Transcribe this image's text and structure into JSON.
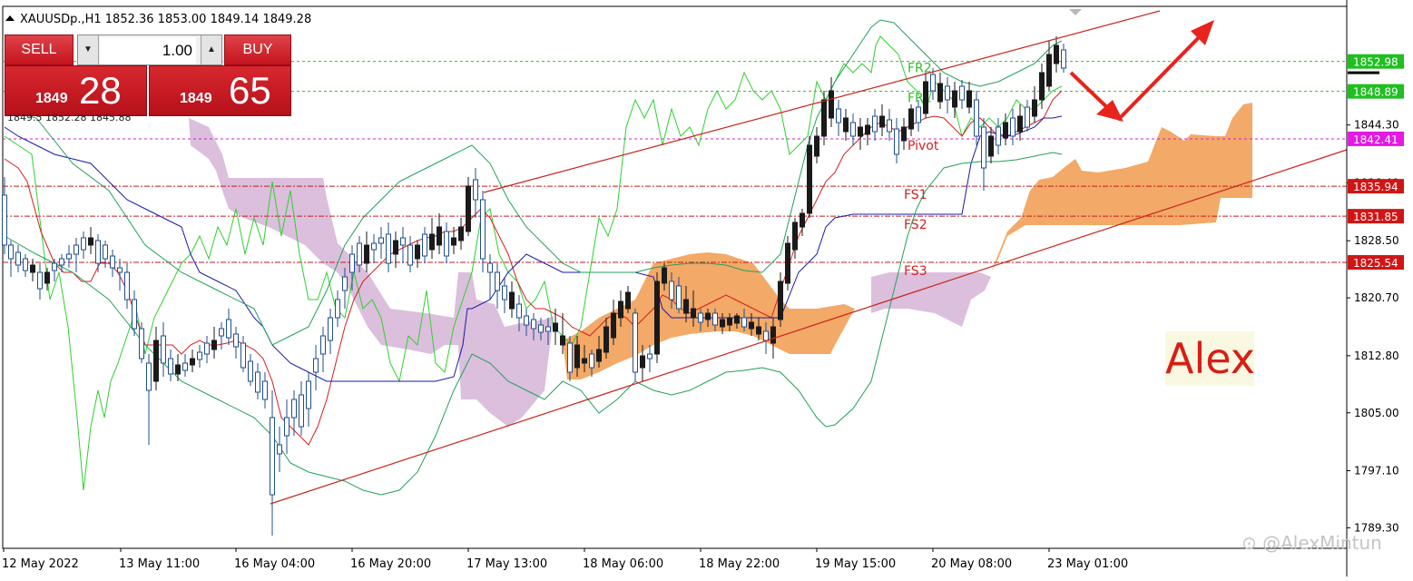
{
  "window": {
    "symbol_header": "XAUUSDp.,H1  1852.36 1853.00 1849.14 1849.28"
  },
  "trade_panel": {
    "sell_label": "SELL",
    "buy_label": "BUY",
    "lot_value": "1.00",
    "sell_price_small": "1849",
    "sell_price_big": "28",
    "buy_price_small": "1849",
    "buy_price_big": "65",
    "hidden_row_text": "1849.5 1852.28 1845.88"
  },
  "price_axis": {
    "ticks": [
      "1844.30",
      "1836.40",
      "1828.50",
      "1820.70",
      "1812.80",
      "1805.00",
      "1797.10",
      "1789.30"
    ],
    "current_price_label": "1852.98",
    "level_tags": [
      {
        "label": "1852.98",
        "bg": "#1fbf1f"
      },
      {
        "label": "1848.89",
        "bg": "#1fbf1f"
      },
      {
        "label": "1842.41",
        "bg": "#e419e4"
      },
      {
        "label": "1835.94",
        "bg": "#d01515"
      },
      {
        "label": "1831.85",
        "bg": "#d01515"
      },
      {
        "label": "1825.54",
        "bg": "#d01515"
      }
    ]
  },
  "time_axis": {
    "labels": [
      "12 May 2022",
      "13 May 11:00",
      "16 May 04:00",
      "16 May 20:00",
      "17 May 13:00",
      "18 May 06:00",
      "18 May 22:00",
      "19 May 15:00",
      "20 May 08:00",
      "23 May 01:00"
    ]
  },
  "pivot_levels": [
    {
      "name": "FR2",
      "color": "#2dbd2d"
    },
    {
      "name": "FR1",
      "color": "#2dbd2d"
    },
    {
      "name": "Pivot",
      "color": "#d42020"
    },
    {
      "name": "FS1",
      "color": "#d42020"
    },
    {
      "name": "FS2",
      "color": "#d42020"
    },
    {
      "name": "FS3",
      "color": "#d42020"
    }
  ],
  "chart_data": {
    "type": "candlestick",
    "symbol": "XAUUSDp.",
    "timeframe": "H1",
    "ohlc_header": {
      "open": 1852.36,
      "high": 1853.0,
      "low": 1849.14,
      "close": 1849.28
    },
    "ylim": [
      1786.5,
      1860.5
    ],
    "yticks": [
      1844.3,
      1836.4,
      1828.5,
      1820.7,
      1812.8,
      1805.0,
      1797.1,
      1789.3
    ],
    "levels": [
      {
        "name": "FR2",
        "value": 1852.98
      },
      {
        "name": "FR1",
        "value": 1848.89
      },
      {
        "name": "Pivot",
        "value": 1842.41
      },
      {
        "name": "FS1",
        "value": 1835.94
      },
      {
        "name": "FS2",
        "value": 1831.85
      },
      {
        "name": "FS3",
        "value": 1825.54
      }
    ],
    "annotation": "Alex",
    "watermark": "@AlexMintun",
    "colors": {
      "bull_candle": "#1f4e8c",
      "bear_candle": "#1a1a1a",
      "cloud_bull": "#f2a45f",
      "cloud_bear": "#d7b8d9",
      "trend_channel": "#c8241b",
      "arrow": "#e8231c",
      "indicator_green": "#2fd02f",
      "indicator_red": "#d61e1e",
      "indicator_blue": "#1a1aa8",
      "bollinger": "#22a05a"
    }
  },
  "overlay": {
    "annotation_text": "Alex",
    "watermark_text": "@AlexMintun"
  }
}
